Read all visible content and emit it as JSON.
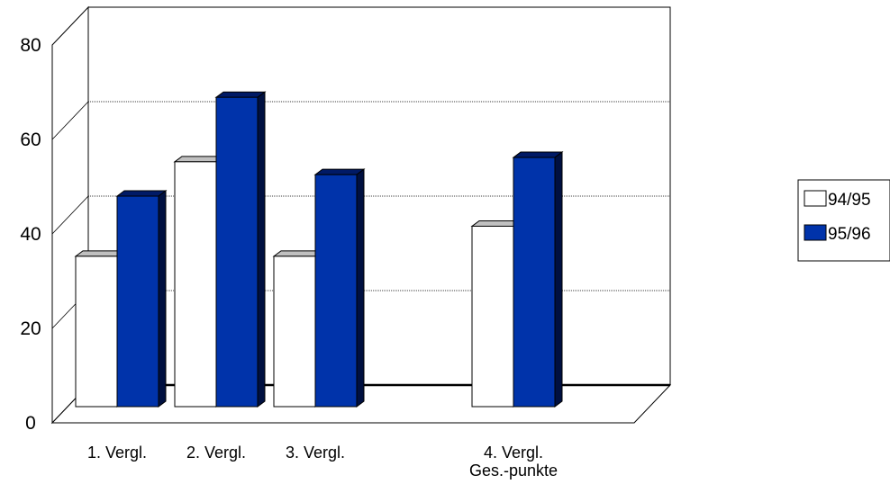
{
  "chart_data": {
    "type": "bar",
    "categories": [
      [
        "1. Vergl."
      ],
      [
        "2. Vergl."
      ],
      [
        "3. Vergl."
      ],
      [
        "4. Vergl.",
        "Ges.-punkte"
      ]
    ],
    "series": [
      {
        "name": "94/95",
        "values": [
          35,
          57,
          35,
          42
        ],
        "color": "#ffffff"
      },
      {
        "name": "95/96",
        "values": [
          49,
          72,
          54,
          58
        ],
        "color": "#0033aa"
      }
    ],
    "ylim": [
      0,
      80
    ],
    "yticks": [
      0,
      20,
      40,
      60,
      80
    ],
    "grid": true,
    "legend": "right"
  }
}
